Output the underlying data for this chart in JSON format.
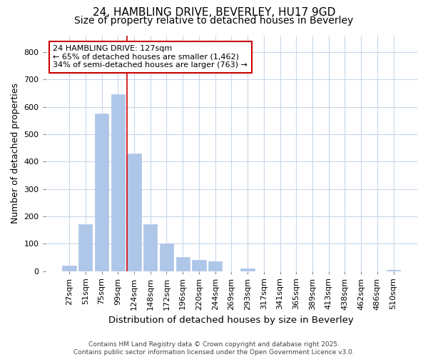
{
  "title": "24, HAMBLING DRIVE, BEVERLEY, HU17 9GD",
  "subtitle": "Size of property relative to detached houses in Beverley",
  "xlabel": "Distribution of detached houses by size in Beverley",
  "ylabel": "Number of detached properties",
  "categories": [
    "27sqm",
    "51sqm",
    "75sqm",
    "99sqm",
    "124sqm",
    "148sqm",
    "172sqm",
    "196sqm",
    "220sqm",
    "244sqm",
    "269sqm",
    "293sqm",
    "317sqm",
    "341sqm",
    "365sqm",
    "389sqm",
    "413sqm",
    "438sqm",
    "462sqm",
    "486sqm",
    "510sqm"
  ],
  "values": [
    20,
    170,
    575,
    645,
    430,
    170,
    100,
    50,
    40,
    35,
    0,
    10,
    0,
    0,
    0,
    0,
    0,
    0,
    0,
    0,
    5
  ],
  "bar_color": "#aec6e8",
  "bar_edgecolor": "#aec6e8",
  "vline_color": "#cc0000",
  "annotation_text": "24 HAMBLING DRIVE: 127sqm\n← 65% of detached houses are smaller (1,462)\n34% of semi-detached houses are larger (763) →",
  "annotation_box_color": "#ffffff",
  "annotation_box_edgecolor": "#cc0000",
  "footnote": "Contains HM Land Registry data © Crown copyright and database right 2025.\nContains public sector information licensed under the Open Government Licence v3.0.",
  "ylim": [
    0,
    860
  ],
  "yticks": [
    0,
    100,
    200,
    300,
    400,
    500,
    600,
    700,
    800
  ],
  "bg_color": "#ffffff",
  "grid_color": "#c8d8e8",
  "title_fontsize": 11,
  "subtitle_fontsize": 10
}
